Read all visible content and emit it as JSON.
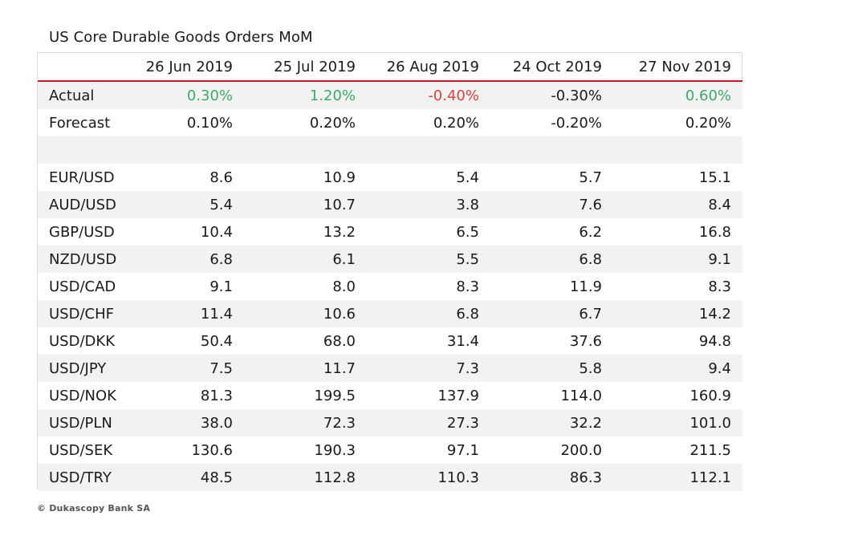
{
  "title": "US Core Durable Goods Orders MoM",
  "footer": "© Dukascopy Bank SA",
  "colors": {
    "positive": "#3aaa6a",
    "negative": "#e0403a",
    "header_rule": "#c8102e",
    "stripe": "#f2f2f2"
  },
  "chart_data": {
    "type": "table",
    "title": "US Core Durable Goods Orders MoM",
    "columns": [
      "26 Jun 2019",
      "25 Jul 2019",
      "26 Aug 2019",
      "24 Oct 2019",
      "27 Nov 2019"
    ],
    "rows": [
      {
        "label": "Actual",
        "values": [
          "0.30%",
          "1.20%",
          "-0.40%",
          "-0.30%",
          "0.60%"
        ],
        "tones": [
          "pos",
          "pos",
          "neg",
          "",
          "pos"
        ]
      },
      {
        "label": "Forecast",
        "values": [
          "0.10%",
          "0.20%",
          "0.20%",
          "-0.20%",
          "0.20%"
        ]
      },
      {
        "label": "",
        "values": [
          "",
          "",
          "",
          "",
          ""
        ]
      },
      {
        "label": "EUR/USD",
        "values": [
          "8.6",
          "10.9",
          "5.4",
          "5.7",
          "15.1"
        ]
      },
      {
        "label": "AUD/USD",
        "values": [
          "5.4",
          "10.7",
          "3.8",
          "7.6",
          "8.4"
        ]
      },
      {
        "label": "GBP/USD",
        "values": [
          "10.4",
          "13.2",
          "6.5",
          "6.2",
          "16.8"
        ]
      },
      {
        "label": "NZD/USD",
        "values": [
          "6.8",
          "6.1",
          "5.5",
          "6.8",
          "9.1"
        ]
      },
      {
        "label": "USD/CAD",
        "values": [
          "9.1",
          "8.0",
          "8.3",
          "11.9",
          "8.3"
        ]
      },
      {
        "label": "USD/CHF",
        "values": [
          "11.4",
          "10.6",
          "6.8",
          "6.7",
          "14.2"
        ]
      },
      {
        "label": "USD/DKK",
        "values": [
          "50.4",
          "68.0",
          "31.4",
          "37.6",
          "94.8"
        ]
      },
      {
        "label": "USD/JPY",
        "values": [
          "7.5",
          "11.7",
          "7.3",
          "5.8",
          "9.4"
        ]
      },
      {
        "label": "USD/NOK",
        "values": [
          "81.3",
          "199.5",
          "137.9",
          "114.0",
          "160.9"
        ]
      },
      {
        "label": "USD/PLN",
        "values": [
          "38.0",
          "72.3",
          "27.3",
          "32.2",
          "101.0"
        ]
      },
      {
        "label": "USD/SEK",
        "values": [
          "130.6",
          "190.3",
          "97.1",
          "200.0",
          "211.5"
        ]
      },
      {
        "label": "USD/TRY",
        "values": [
          "48.5",
          "112.8",
          "110.3",
          "86.3",
          "112.1"
        ]
      }
    ]
  }
}
